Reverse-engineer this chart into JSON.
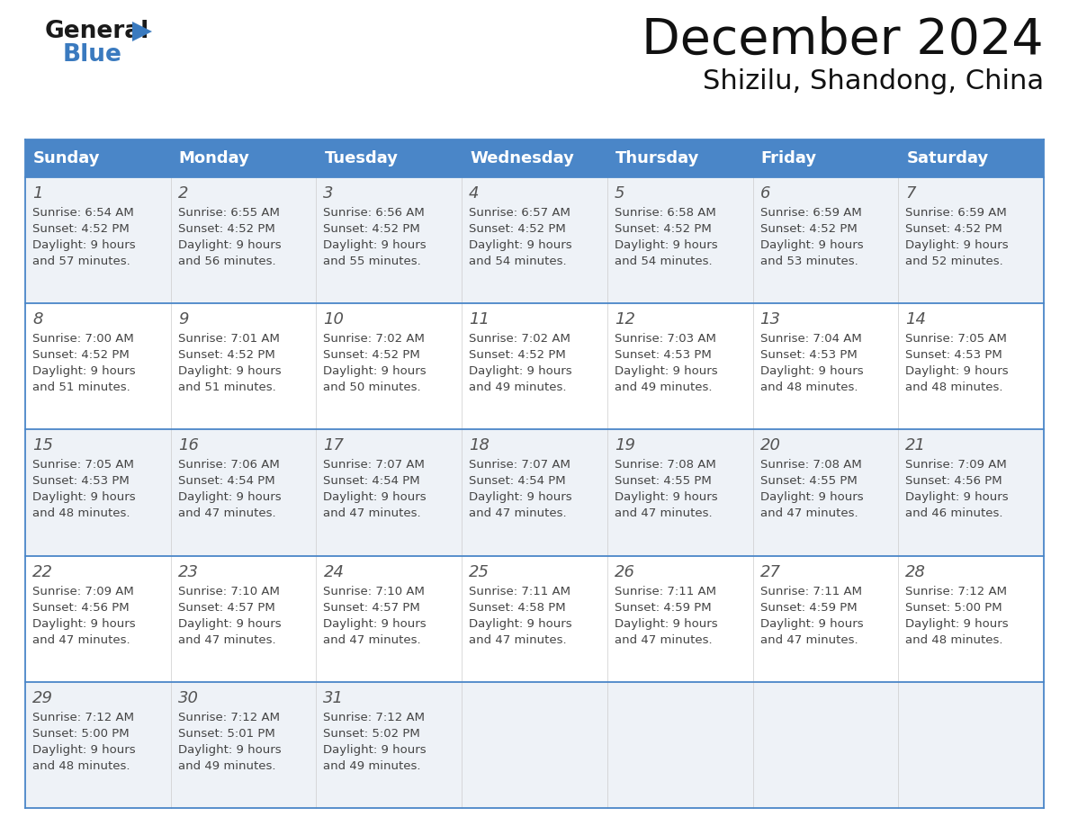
{
  "title": "December 2024",
  "subtitle": "Shizilu, Shandong, China",
  "days_of_week": [
    "Sunday",
    "Monday",
    "Tuesday",
    "Wednesday",
    "Thursday",
    "Friday",
    "Saturday"
  ],
  "header_bg": "#4a86c8",
  "header_text": "#ffffff",
  "row_bg_even": "#ffffff",
  "row_bg_odd": "#eef2f7",
  "border_color": "#4a86c8",
  "text_color": "#444444",
  "day_num_color": "#555555",
  "calendar_data": [
    [
      {
        "day": 1,
        "sunrise": "6:54 AM",
        "sunset": "4:52 PM",
        "daylight_h": "9 hours",
        "daylight_m": "57 minutes."
      },
      {
        "day": 2,
        "sunrise": "6:55 AM",
        "sunset": "4:52 PM",
        "daylight_h": "9 hours",
        "daylight_m": "56 minutes."
      },
      {
        "day": 3,
        "sunrise": "6:56 AM",
        "sunset": "4:52 PM",
        "daylight_h": "9 hours",
        "daylight_m": "55 minutes."
      },
      {
        "day": 4,
        "sunrise": "6:57 AM",
        "sunset": "4:52 PM",
        "daylight_h": "9 hours",
        "daylight_m": "54 minutes."
      },
      {
        "day": 5,
        "sunrise": "6:58 AM",
        "sunset": "4:52 PM",
        "daylight_h": "9 hours",
        "daylight_m": "54 minutes."
      },
      {
        "day": 6,
        "sunrise": "6:59 AM",
        "sunset": "4:52 PM",
        "daylight_h": "9 hours",
        "daylight_m": "53 minutes."
      },
      {
        "day": 7,
        "sunrise": "6:59 AM",
        "sunset": "4:52 PM",
        "daylight_h": "9 hours",
        "daylight_m": "52 minutes."
      }
    ],
    [
      {
        "day": 8,
        "sunrise": "7:00 AM",
        "sunset": "4:52 PM",
        "daylight_h": "9 hours",
        "daylight_m": "51 minutes."
      },
      {
        "day": 9,
        "sunrise": "7:01 AM",
        "sunset": "4:52 PM",
        "daylight_h": "9 hours",
        "daylight_m": "51 minutes."
      },
      {
        "day": 10,
        "sunrise": "7:02 AM",
        "sunset": "4:52 PM",
        "daylight_h": "9 hours",
        "daylight_m": "50 minutes."
      },
      {
        "day": 11,
        "sunrise": "7:02 AM",
        "sunset": "4:52 PM",
        "daylight_h": "9 hours",
        "daylight_m": "49 minutes."
      },
      {
        "day": 12,
        "sunrise": "7:03 AM",
        "sunset": "4:53 PM",
        "daylight_h": "9 hours",
        "daylight_m": "49 minutes."
      },
      {
        "day": 13,
        "sunrise": "7:04 AM",
        "sunset": "4:53 PM",
        "daylight_h": "9 hours",
        "daylight_m": "48 minutes."
      },
      {
        "day": 14,
        "sunrise": "7:05 AM",
        "sunset": "4:53 PM",
        "daylight_h": "9 hours",
        "daylight_m": "48 minutes."
      }
    ],
    [
      {
        "day": 15,
        "sunrise": "7:05 AM",
        "sunset": "4:53 PM",
        "daylight_h": "9 hours",
        "daylight_m": "48 minutes."
      },
      {
        "day": 16,
        "sunrise": "7:06 AM",
        "sunset": "4:54 PM",
        "daylight_h": "9 hours",
        "daylight_m": "47 minutes."
      },
      {
        "day": 17,
        "sunrise": "7:07 AM",
        "sunset": "4:54 PM",
        "daylight_h": "9 hours",
        "daylight_m": "47 minutes."
      },
      {
        "day": 18,
        "sunrise": "7:07 AM",
        "sunset": "4:54 PM",
        "daylight_h": "9 hours",
        "daylight_m": "47 minutes."
      },
      {
        "day": 19,
        "sunrise": "7:08 AM",
        "sunset": "4:55 PM",
        "daylight_h": "9 hours",
        "daylight_m": "47 minutes."
      },
      {
        "day": 20,
        "sunrise": "7:08 AM",
        "sunset": "4:55 PM",
        "daylight_h": "9 hours",
        "daylight_m": "47 minutes."
      },
      {
        "day": 21,
        "sunrise": "7:09 AM",
        "sunset": "4:56 PM",
        "daylight_h": "9 hours",
        "daylight_m": "46 minutes."
      }
    ],
    [
      {
        "day": 22,
        "sunrise": "7:09 AM",
        "sunset": "4:56 PM",
        "daylight_h": "9 hours",
        "daylight_m": "47 minutes."
      },
      {
        "day": 23,
        "sunrise": "7:10 AM",
        "sunset": "4:57 PM",
        "daylight_h": "9 hours",
        "daylight_m": "47 minutes."
      },
      {
        "day": 24,
        "sunrise": "7:10 AM",
        "sunset": "4:57 PM",
        "daylight_h": "9 hours",
        "daylight_m": "47 minutes."
      },
      {
        "day": 25,
        "sunrise": "7:11 AM",
        "sunset": "4:58 PM",
        "daylight_h": "9 hours",
        "daylight_m": "47 minutes."
      },
      {
        "day": 26,
        "sunrise": "7:11 AM",
        "sunset": "4:59 PM",
        "daylight_h": "9 hours",
        "daylight_m": "47 minutes."
      },
      {
        "day": 27,
        "sunrise": "7:11 AM",
        "sunset": "4:59 PM",
        "daylight_h": "9 hours",
        "daylight_m": "47 minutes."
      },
      {
        "day": 28,
        "sunrise": "7:12 AM",
        "sunset": "5:00 PM",
        "daylight_h": "9 hours",
        "daylight_m": "48 minutes."
      }
    ],
    [
      {
        "day": 29,
        "sunrise": "7:12 AM",
        "sunset": "5:00 PM",
        "daylight_h": "9 hours",
        "daylight_m": "48 minutes."
      },
      {
        "day": 30,
        "sunrise": "7:12 AM",
        "sunset": "5:01 PM",
        "daylight_h": "9 hours",
        "daylight_m": "49 minutes."
      },
      {
        "day": 31,
        "sunrise": "7:12 AM",
        "sunset": "5:02 PM",
        "daylight_h": "9 hours",
        "daylight_m": "49 minutes."
      },
      null,
      null,
      null,
      null
    ]
  ],
  "logo_text1_color": "#1a1a1a",
  "logo_text2_color": "#3a7abf",
  "logo_triangle_color": "#3a7abf",
  "title_fontsize": 40,
  "subtitle_fontsize": 22,
  "header_fontsize": 13,
  "day_num_fontsize": 13,
  "cell_text_fontsize": 9.5
}
